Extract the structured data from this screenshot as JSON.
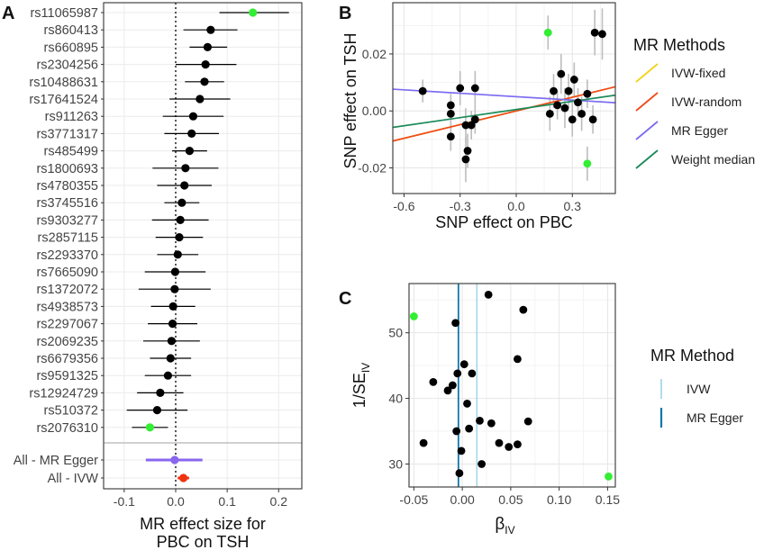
{
  "colors": {
    "green": "#33ee33",
    "egger_purple": "#8866ee",
    "ivw_red": "#ee3311",
    "ivw_fixed": "#f2d21a",
    "ivw_random": "#f04a1a",
    "mr_egger": "#7c6cf0",
    "weight_median": "#1a8a5a",
    "ivw_light": "#9fd3ea",
    "egger_dark": "#1177aa"
  },
  "chart_data": [
    {
      "panel": "A",
      "type": "scatter",
      "label": "A",
      "xlabel_line1": "MR effect size for",
      "xlabel_line2": "PBC  on  TSH",
      "xlim": [
        -0.14,
        0.245
      ],
      "xticks": [
        -0.1,
        0.0,
        0.1,
        0.2
      ],
      "xtick_labels": [
        "-0.1",
        "0.0",
        "0.1",
        "0.2"
      ],
      "snps": [
        {
          "name": "rs11065987",
          "est": 0.15,
          "lo": 0.085,
          "hi": 0.22,
          "highlight": true
        },
        {
          "name": "rs860413",
          "est": 0.068,
          "lo": 0.015,
          "hi": 0.12,
          "highlight": false
        },
        {
          "name": "rs660895",
          "est": 0.062,
          "lo": 0.027,
          "hi": 0.1,
          "highlight": false
        },
        {
          "name": "rs2304256",
          "est": 0.058,
          "lo": 0.0,
          "hi": 0.118,
          "highlight": false
        },
        {
          "name": "rs10488631",
          "est": 0.056,
          "lo": 0.018,
          "hi": 0.094,
          "highlight": false
        },
        {
          "name": "rs17641524",
          "est": 0.047,
          "lo": -0.012,
          "hi": 0.106,
          "highlight": false
        },
        {
          "name": "rs911263",
          "est": 0.034,
          "lo": -0.025,
          "hi": 0.093,
          "highlight": false
        },
        {
          "name": "rs3771317",
          "est": 0.031,
          "lo": -0.022,
          "hi": 0.084,
          "highlight": false
        },
        {
          "name": "rs485499",
          "est": 0.027,
          "lo": -0.007,
          "hi": 0.061,
          "highlight": false
        },
        {
          "name": "rs1800693",
          "est": 0.019,
          "lo": -0.045,
          "hi": 0.083,
          "highlight": false
        },
        {
          "name": "rs4780355",
          "est": 0.017,
          "lo": -0.036,
          "hi": 0.07,
          "highlight": false
        },
        {
          "name": "rs3745516",
          "est": 0.012,
          "lo": -0.022,
          "hi": 0.046,
          "highlight": false
        },
        {
          "name": "rs9303277",
          "est": 0.009,
          "lo": -0.046,
          "hi": 0.064,
          "highlight": false
        },
        {
          "name": "rs2857115",
          "est": 0.007,
          "lo": -0.039,
          "hi": 0.053,
          "highlight": false
        },
        {
          "name": "rs2293370",
          "est": 0.004,
          "lo": -0.036,
          "hi": 0.044,
          "highlight": false
        },
        {
          "name": "rs7665090",
          "est": -0.001,
          "lo": -0.06,
          "hi": 0.058,
          "highlight": false
        },
        {
          "name": "rs1372072",
          "est": -0.002,
          "lo": -0.072,
          "hi": 0.068,
          "highlight": false
        },
        {
          "name": "rs4938573",
          "est": -0.005,
          "lo": -0.048,
          "hi": 0.038,
          "highlight": false
        },
        {
          "name": "rs2297067",
          "est": -0.006,
          "lo": -0.054,
          "hi": 0.042,
          "highlight": false
        },
        {
          "name": "rs2069235",
          "est": -0.008,
          "lo": -0.063,
          "hi": 0.047,
          "highlight": false
        },
        {
          "name": "rs6679356",
          "est": -0.01,
          "lo": -0.05,
          "hi": 0.03,
          "highlight": false
        },
        {
          "name": "rs9591325",
          "est": -0.015,
          "lo": -0.06,
          "hi": 0.03,
          "highlight": false
        },
        {
          "name": "rs12924729",
          "est": -0.03,
          "lo": -0.075,
          "hi": 0.015,
          "highlight": false
        },
        {
          "name": "rs510372",
          "est": -0.036,
          "lo": -0.095,
          "hi": 0.023,
          "highlight": false
        },
        {
          "name": "rs2076310",
          "est": -0.05,
          "lo": -0.085,
          "hi": -0.015,
          "highlight": true
        }
      ],
      "summary": [
        {
          "name": "All - MR Egger",
          "est": -0.002,
          "lo": -0.058,
          "hi": 0.052,
          "color": "#8866ee"
        },
        {
          "name": "All - IVW",
          "est": 0.015,
          "lo": 0.004,
          "hi": 0.026,
          "color": "#ee3311"
        }
      ]
    },
    {
      "panel": "B",
      "type": "scatter",
      "label": "B",
      "xlabel": "SNP effect on PBC",
      "ylabel": "SNP effect on TSH",
      "xlim": [
        -0.66,
        0.53
      ],
      "ylim": [
        -0.029,
        0.038
      ],
      "xticks": [
        -0.6,
        -0.3,
        0.0,
        0.3
      ],
      "xtick_labels": [
        "-0.6",
        "-0.3",
        "0.0",
        "0.3"
      ],
      "yticks": [
        -0.02,
        0.0,
        0.02
      ],
      "ytick_labels": [
        "-0.02",
        "0.00",
        "0.02"
      ],
      "points": [
        {
          "x": -0.5,
          "y": 0.007,
          "se": 0.004,
          "highlight": false
        },
        {
          "x": -0.35,
          "y": -0.001,
          "se": 0.006,
          "highlight": false
        },
        {
          "x": -0.35,
          "y": -0.009,
          "se": 0.005,
          "highlight": false
        },
        {
          "x": -0.35,
          "y": 0.002,
          "se": 0.004,
          "highlight": false
        },
        {
          "x": -0.3,
          "y": 0.008,
          "se": 0.006,
          "highlight": false
        },
        {
          "x": -0.27,
          "y": -0.005,
          "se": 0.006,
          "highlight": false
        },
        {
          "x": -0.26,
          "y": -0.014,
          "se": 0.006,
          "highlight": false
        },
        {
          "x": -0.27,
          "y": -0.017,
          "se": 0.008,
          "highlight": false
        },
        {
          "x": -0.24,
          "y": -0.005,
          "se": 0.005,
          "highlight": false
        },
        {
          "x": -0.22,
          "y": -0.003,
          "se": 0.005,
          "highlight": false
        },
        {
          "x": -0.22,
          "y": 0.008,
          "se": 0.006,
          "highlight": false
        },
        {
          "x": 0.17,
          "y": 0.0275,
          "se": 0.006,
          "highlight": true
        },
        {
          "x": 0.18,
          "y": -0.001,
          "se": 0.006,
          "highlight": false
        },
        {
          "x": 0.2,
          "y": 0.007,
          "se": 0.006,
          "highlight": false
        },
        {
          "x": 0.22,
          "y": 0.002,
          "se": 0.005,
          "highlight": false
        },
        {
          "x": 0.24,
          "y": 0.013,
          "se": 0.007,
          "highlight": false
        },
        {
          "x": 0.26,
          "y": 0.001,
          "se": 0.007,
          "highlight": false
        },
        {
          "x": 0.28,
          "y": 0.007,
          "se": 0.006,
          "highlight": false
        },
        {
          "x": 0.3,
          "y": -0.003,
          "se": 0.006,
          "highlight": false
        },
        {
          "x": 0.31,
          "y": 0.011,
          "se": 0.006,
          "highlight": false
        },
        {
          "x": 0.33,
          "y": 0.003,
          "se": 0.005,
          "highlight": false
        },
        {
          "x": 0.35,
          "y": -0.001,
          "se": 0.006,
          "highlight": false
        },
        {
          "x": 0.38,
          "y": 0.006,
          "se": 0.005,
          "highlight": false
        },
        {
          "x": 0.38,
          "y": -0.0185,
          "se": 0.006,
          "highlight": true
        },
        {
          "x": 0.41,
          "y": -0.003,
          "se": 0.005,
          "highlight": false
        },
        {
          "x": 0.42,
          "y": 0.0275,
          "se": 0.008,
          "highlight": false
        },
        {
          "x": 0.46,
          "y": 0.027,
          "se": 0.009,
          "highlight": false
        }
      ],
      "lines": [
        {
          "name": "IVW-fixed",
          "intercept": 0.0,
          "slope": 0.016,
          "color": "#f2d21a"
        },
        {
          "name": "IVW-random",
          "intercept": 0.0,
          "slope": 0.016,
          "color": "#f04a1a"
        },
        {
          "name": "MR Egger",
          "intercept": 0.005,
          "slope": -0.004,
          "color": "#7c6cf0"
        },
        {
          "name": "Weight median",
          "intercept": 0.0005,
          "slope": 0.0095,
          "color": "#1a8a5a"
        }
      ],
      "legend_title": "MR Methods",
      "legend": [
        "IVW-fixed",
        "IVW-random",
        "MR Egger",
        "Weight median"
      ]
    },
    {
      "panel": "C",
      "type": "scatter",
      "label": "C",
      "xlabel": "β",
      "xlabel_sub": "IV",
      "ylabel": "1/SE",
      "ylabel_sub": "IV",
      "xlim": [
        -0.055,
        0.158
      ],
      "ylim": [
        26.5,
        57.5
      ],
      "xticks": [
        -0.05,
        0.0,
        0.05,
        0.1,
        0.15
      ],
      "xtick_labels": [
        "-0.05",
        "0.00",
        "0.05",
        "0.10",
        "0.15"
      ],
      "yticks": [
        30,
        40,
        50
      ],
      "ytick_labels": [
        "30",
        "40",
        "50"
      ],
      "points": [
        {
          "x": -0.05,
          "y": 52.5,
          "highlight": true
        },
        {
          "x": -0.04,
          "y": 33.2,
          "highlight": false
        },
        {
          "x": -0.03,
          "y": 42.5,
          "highlight": false
        },
        {
          "x": -0.015,
          "y": 41.2,
          "highlight": false
        },
        {
          "x": -0.01,
          "y": 42.0,
          "highlight": false
        },
        {
          "x": -0.007,
          "y": 51.5,
          "highlight": false
        },
        {
          "x": -0.006,
          "y": 35.0,
          "highlight": false
        },
        {
          "x": -0.005,
          "y": 43.8,
          "highlight": false
        },
        {
          "x": -0.003,
          "y": 28.6,
          "highlight": false
        },
        {
          "x": -0.001,
          "y": 32.0,
          "highlight": false
        },
        {
          "x": 0.002,
          "y": 45.2,
          "highlight": false
        },
        {
          "x": 0.005,
          "y": 39.2,
          "highlight": false
        },
        {
          "x": 0.007,
          "y": 35.4,
          "highlight": false
        },
        {
          "x": 0.01,
          "y": 43.8,
          "highlight": false
        },
        {
          "x": 0.018,
          "y": 36.6,
          "highlight": false
        },
        {
          "x": 0.02,
          "y": 30.0,
          "highlight": false
        },
        {
          "x": 0.027,
          "y": 55.8,
          "highlight": false
        },
        {
          "x": 0.03,
          "y": 36.2,
          "highlight": false
        },
        {
          "x": 0.038,
          "y": 33.2,
          "highlight": false
        },
        {
          "x": 0.048,
          "y": 32.6,
          "highlight": false
        },
        {
          "x": 0.057,
          "y": 33.0,
          "highlight": false
        },
        {
          "x": 0.057,
          "y": 46.0,
          "highlight": false
        },
        {
          "x": 0.063,
          "y": 53.5,
          "highlight": false
        },
        {
          "x": 0.068,
          "y": 36.5,
          "highlight": false
        },
        {
          "x": 0.151,
          "y": 28.1,
          "highlight": true
        }
      ],
      "vlines": [
        {
          "name": "IVW",
          "x": 0.015,
          "color": "#9fd3ea"
        },
        {
          "name": "MR Egger",
          "x": -0.004,
          "color": "#1177aa"
        }
      ],
      "legend_title": "MR Method",
      "legend": [
        "IVW",
        "MR Egger"
      ]
    }
  ]
}
